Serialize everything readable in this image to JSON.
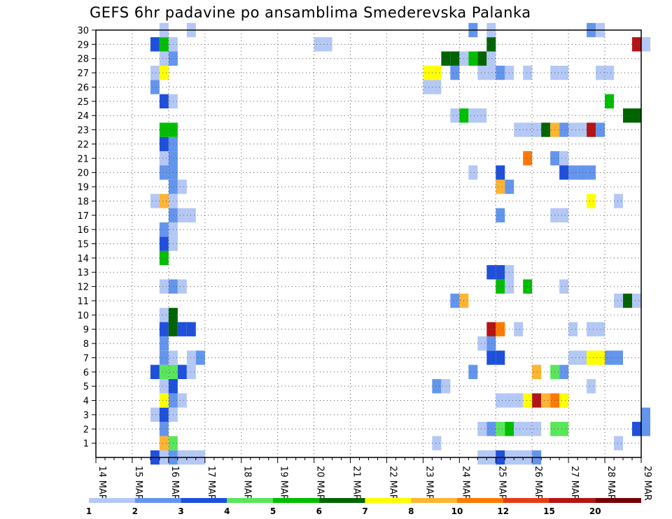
{
  "chart_data": {
    "type": "heatmap",
    "title": "GEFS 6hr padavine po ansamblima Smederevska Palanka",
    "xlabel": "",
    "ylabel": "",
    "x_ticks": [
      "14 MAR",
      "15 MAR",
      "16 MAR",
      "17 MAR",
      "18 MAR",
      "19 MAR",
      "20 MAR",
      "21 MAR",
      "22 MAR",
      "23 MAR",
      "24 MAR",
      "25 MAR",
      "26 MAR",
      "27 MAR",
      "28 MAR",
      "29 MAR"
    ],
    "y_ticks": [
      "1",
      "2",
      "3",
      "4",
      "5",
      "6",
      "7",
      "8",
      "9",
      "10",
      "11",
      "12",
      "13",
      "14",
      "15",
      "16",
      "17",
      "18",
      "19",
      "20",
      "21",
      "22",
      "23",
      "24",
      "25",
      "26",
      "27",
      "28",
      "29",
      "30"
    ],
    "x_range": [
      "14 MAR 00h",
      "29 MAR 00h"
    ],
    "y_range": [
      0,
      30
    ],
    "x_unit": "6-hour step",
    "grid": true,
    "legend_position": "bottom",
    "legend": {
      "levels": [
        "1",
        "2",
        "3",
        "4",
        "5",
        "6",
        "7",
        "8",
        "10",
        "12",
        "15",
        "20"
      ],
      "colors": [
        "#b4c8f5",
        "#6495ed",
        "#1e50dc",
        "#5ae65a",
        "#00be00",
        "#006400",
        "#ffff00",
        "#ffb432",
        "#ff7800",
        "#e63c14",
        "#b41414",
        "#780000"
      ]
    },
    "cells": [
      {
        "member": 0,
        "x": [
          "15 MAR 12h",
          "15 MAR 18h",
          "16 MAR 00h",
          "16 MAR 06h",
          "16 MAR 12h",
          "16 MAR 18h",
          "24 MAR 12h",
          "24 MAR 18h",
          "25 MAR 00h",
          "25 MAR 06h",
          "25 MAR 12h",
          "25 MAR 18h",
          "26 MAR 00h"
        ],
        "v": [
          3,
          1,
          2,
          1,
          1,
          1,
          1,
          1,
          3,
          1,
          1,
          1,
          2
        ]
      },
      {
        "member": 1,
        "x": [
          "15 MAR 18h",
          "16 MAR 00h",
          "23 MAR 06h",
          "28 MAR 06h"
        ],
        "v": [
          8,
          4,
          1,
          1
        ]
      },
      {
        "member": 2,
        "x": [
          "15 MAR 18h",
          "24 MAR 12h",
          "24 MAR 18h",
          "25 MAR 00h",
          "25 MAR 06h",
          "25 MAR 12h",
          "25 MAR 18h",
          "26 MAR 00h",
          "26 MAR 12h",
          "26 MAR 18h",
          "28 MAR 18h",
          "29 MAR 00h"
        ],
        "v": [
          2,
          1,
          2,
          4,
          5,
          1,
          1,
          1,
          4,
          4,
          3,
          2
        ]
      },
      {
        "member": 3,
        "x": [
          "15 MAR 12h",
          "15 MAR 18h",
          "16 MAR 00h",
          "29 MAR 00h"
        ],
        "v": [
          1,
          3,
          1,
          2
        ]
      },
      {
        "member": 4,
        "x": [
          "15 MAR 18h",
          "16 MAR 00h",
          "16 MAR 06h",
          "25 MAR 00h",
          "25 MAR 06h",
          "25 MAR 12h",
          "25 MAR 18h",
          "26 MAR 00h",
          "26 MAR 06h",
          "26 MAR 12h",
          "26 MAR 18h"
        ],
        "v": [
          7,
          2,
          1,
          1,
          1,
          1,
          7,
          15,
          8,
          10,
          7
        ]
      },
      {
        "member": 5,
        "x": [
          "15 MAR 18h",
          "16 MAR 00h",
          "23 MAR 06h",
          "23 MAR 12h",
          "27 MAR 12h"
        ],
        "v": [
          1,
          3,
          2,
          1,
          1
        ]
      },
      {
        "member": 6,
        "x": [
          "15 MAR 12h",
          "15 MAR 18h",
          "16 MAR 00h",
          "16 MAR 06h",
          "16 MAR 12h",
          "24 MAR 06h",
          "26 MAR 00h",
          "26 MAR 12h",
          "26 MAR 18h"
        ],
        "v": [
          3,
          4,
          4,
          3,
          1,
          2,
          8,
          4,
          2
        ]
      },
      {
        "member": 7,
        "x": [
          "15 MAR 18h",
          "16 MAR 00h",
          "16 MAR 12h",
          "16 MAR 18h",
          "24 MAR 18h",
          "25 MAR 00h",
          "27 MAR 00h",
          "27 MAR 06h",
          "27 MAR 12h",
          "27 MAR 18h",
          "28 MAR 00h",
          "28 MAR 06h"
        ],
        "v": [
          2,
          1,
          1,
          2,
          3,
          3,
          1,
          1,
          7,
          7,
          2,
          2
        ]
      },
      {
        "member": 8,
        "x": [
          "15 MAR 18h",
          "24 MAR 12h",
          "24 MAR 18h"
        ],
        "v": [
          2,
          1,
          2
        ]
      },
      {
        "member": 9,
        "x": [
          "15 MAR 18h",
          "16 MAR 00h",
          "16 MAR 06h",
          "16 MAR 12h",
          "24 MAR 18h",
          "25 MAR 00h",
          "25 MAR 12h",
          "27 MAR 00h",
          "27 MAR 12h",
          "27 MAR 18h"
        ],
        "v": [
          3,
          6,
          3,
          3,
          15,
          10,
          1,
          1,
          1,
          1
        ]
      },
      {
        "member": 10,
        "x": [
          "15 MAR 18h",
          "16 MAR 00h"
        ],
        "v": [
          1,
          6
        ]
      },
      {
        "member": 11,
        "x": [
          "23 MAR 18h",
          "24 MAR 00h",
          "28 MAR 06h",
          "28 MAR 12h",
          "28 MAR 18h"
        ],
        "v": [
          2,
          8,
          1,
          6,
          1
        ]
      },
      {
        "member": 12,
        "x": [
          "15 MAR 18h",
          "16 MAR 00h",
          "16 MAR 06h",
          "25 MAR 00h",
          "25 MAR 06h",
          "25 MAR 18h",
          "26 MAR 18h"
        ],
        "v": [
          1,
          2,
          1,
          5,
          1,
          5,
          1
        ]
      },
      {
        "member": 13,
        "x": [
          "24 MAR 18h",
          "25 MAR 00h",
          "25 MAR 06h"
        ],
        "v": [
          3,
          3,
          1
        ]
      },
      {
        "member": 14,
        "x": [
          "15 MAR 18h"
        ],
        "v": [
          5
        ]
      },
      {
        "member": 15,
        "x": [
          "15 MAR 18h",
          "16 MAR 00h"
        ],
        "v": [
          3,
          1
        ]
      },
      {
        "member": 16,
        "x": [
          "15 MAR 18h",
          "16 MAR 00h"
        ],
        "v": [
          2,
          1
        ]
      },
      {
        "member": 17,
        "x": [
          "16 MAR 00h",
          "16 MAR 06h",
          "16 MAR 12h",
          "25 MAR 00h",
          "26 MAR 12h",
          "26 MAR 18h"
        ],
        "v": [
          2,
          1,
          1,
          2,
          1,
          1
        ]
      },
      {
        "member": 18,
        "x": [
          "15 MAR 12h",
          "15 MAR 18h",
          "16 MAR 00h",
          "27 MAR 12h",
          "28 MAR 06h"
        ],
        "v": [
          1,
          8,
          1,
          7,
          1
        ]
      },
      {
        "member": 19,
        "x": [
          "16 MAR 00h",
          "16 MAR 06h",
          "25 MAR 00h",
          "25 MAR 06h"
        ],
        "v": [
          2,
          1,
          8,
          2
        ]
      },
      {
        "member": 20,
        "x": [
          "15 MAR 18h",
          "16 MAR 00h",
          "24 MAR 06h",
          "25 MAR 00h",
          "26 MAR 18h",
          "27 MAR 00h",
          "27 MAR 06h",
          "27 MAR 12h"
        ],
        "v": [
          2,
          2,
          1,
          3,
          3,
          2,
          2,
          2
        ]
      },
      {
        "member": 21,
        "x": [
          "15 MAR 18h",
          "16 MAR 00h",
          "25 MAR 18h",
          "26 MAR 12h",
          "26 MAR 18h"
        ],
        "v": [
          1,
          2,
          10,
          2,
          1
        ]
      },
      {
        "member": 22,
        "x": [
          "15 MAR 18h",
          "16 MAR 00h"
        ],
        "v": [
          3,
          2
        ]
      },
      {
        "member": 23,
        "x": [
          "15 MAR 18h",
          "16 MAR 00h",
          "25 MAR 12h",
          "25 MAR 18h",
          "26 MAR 00h",
          "26 MAR 06h",
          "26 MAR 12h",
          "26 MAR 18h",
          "27 MAR 00h",
          "27 MAR 06h",
          "27 MAR 12h",
          "27 MAR 18h"
        ],
        "v": [
          5,
          5,
          1,
          1,
          1,
          6,
          8,
          2,
          1,
          1,
          15,
          2
        ]
      },
      {
        "member": 24,
        "x": [
          "23 MAR 18h",
          "24 MAR 00h",
          "24 MAR 06h",
          "24 MAR 12h",
          "28 MAR 12h",
          "28 MAR 18h"
        ],
        "v": [
          1,
          5,
          1,
          1,
          6,
          6
        ]
      },
      {
        "member": 25,
        "x": [
          "15 MAR 18h",
          "16 MAR 00h",
          "28 MAR 00h"
        ],
        "v": [
          3,
          1,
          5
        ]
      },
      {
        "member": 26,
        "x": [
          "15 MAR 12h",
          "23 MAR 00h",
          "23 MAR 06h"
        ],
        "v": [
          2,
          1,
          1
        ]
      },
      {
        "member": 27,
        "x": [
          "15 MAR 12h",
          "15 MAR 18h",
          "23 MAR 00h",
          "23 MAR 06h",
          "23 MAR 18h",
          "24 MAR 12h",
          "24 MAR 18h",
          "25 MAR 00h",
          "25 MAR 06h",
          "25 MAR 18h",
          "26 MAR 12h",
          "26 MAR 18h",
          "27 MAR 18h",
          "28 MAR 00h"
        ],
        "v": [
          1,
          7,
          7,
          7,
          2,
          1,
          1,
          2,
          1,
          1,
          1,
          1,
          1,
          1
        ]
      },
      {
        "member": 28,
        "x": [
          "15 MAR 18h",
          "16 MAR 00h",
          "23 MAR 12h",
          "23 MAR 18h",
          "24 MAR 00h",
          "24 MAR 06h",
          "24 MAR 12h",
          "24 MAR 18h"
        ],
        "v": [
          1,
          2,
          6,
          6,
          1,
          5,
          6,
          1
        ]
      },
      {
        "member": 29,
        "x": [
          "15 MAR 12h",
          "15 MAR 18h",
          "16 MAR 00h",
          "20 MAR 00h",
          "20 MAR 06h",
          "24 MAR 18h",
          "28 MAR 18h",
          "29 MAR 00h"
        ],
        "v": [
          3,
          5,
          1,
          1,
          1,
          6,
          15,
          1
        ]
      },
      {
        "member": 30,
        "x": [
          "15 MAR 18h",
          "16 MAR 12h",
          "24 MAR 06h",
          "24 MAR 18h",
          "27 MAR 12h",
          "27 MAR 18h"
        ],
        "v": [
          1,
          1,
          2,
          1,
          2,
          1
        ]
      }
    ]
  }
}
